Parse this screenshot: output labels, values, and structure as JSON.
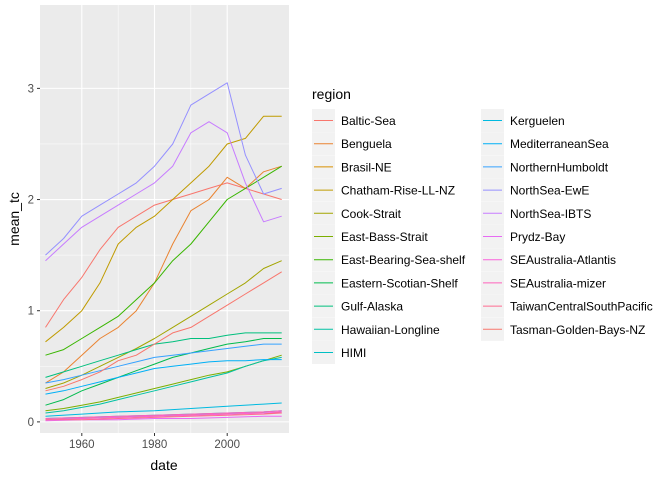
{
  "chart_data": {
    "type": "line",
    "xlabel": "date",
    "ylabel": "mean_tc",
    "xlim": [
      1948.5,
      2017
    ],
    "ylim": [
      -0.1,
      3.75
    ],
    "x_ticks": [
      1960,
      1980,
      2000
    ],
    "y_ticks": [
      0,
      1,
      2,
      3
    ],
    "grid": true,
    "background": "#ebebeb",
    "legend": {
      "title": "region",
      "position": "right",
      "columns": 2
    },
    "series": [
      {
        "name": "Baltic-Sea",
        "color": "#F8766D",
        "x": [
          1950,
          1955,
          1960,
          1965,
          1970,
          1975,
          1980,
          1985,
          1990,
          1995,
          2000,
          2005,
          2010,
          2015
        ],
        "y": [
          0.85,
          1.1,
          1.3,
          1.55,
          1.75,
          1.85,
          1.95,
          2.0,
          2.05,
          2.1,
          2.15,
          2.1,
          2.05,
          2.0
        ]
      },
      {
        "name": "Benguela",
        "color": "#EA8331",
        "x": [
          1950,
          1955,
          1960,
          1965,
          1970,
          1975,
          1980,
          1985,
          1990,
          1995,
          2000,
          2005,
          2010,
          2015
        ],
        "y": [
          0.35,
          0.45,
          0.6,
          0.75,
          0.85,
          1.0,
          1.25,
          1.6,
          1.9,
          2.0,
          2.2,
          2.1,
          2.25,
          2.3
        ]
      },
      {
        "name": "Brasil-NE",
        "color": "#D89000",
        "x": [
          1950,
          1960,
          1970,
          1980,
          1990,
          2000,
          2010,
          2015
        ],
        "y": [
          0.02,
          0.03,
          0.04,
          0.05,
          0.06,
          0.07,
          0.08,
          0.08
        ]
      },
      {
        "name": "Chatham-Rise-LL-NZ",
        "color": "#C09B00",
        "x": [
          1950,
          1955,
          1960,
          1965,
          1970,
          1975,
          1980,
          1985,
          1990,
          1995,
          2000,
          2005,
          2010,
          2015
        ],
        "y": [
          0.72,
          0.85,
          1.0,
          1.25,
          1.6,
          1.75,
          1.85,
          2.0,
          2.15,
          2.3,
          2.5,
          2.55,
          2.75,
          2.75
        ]
      },
      {
        "name": "Cook-Strait",
        "color": "#A3A500",
        "x": [
          1950,
          1955,
          1960,
          1965,
          1970,
          1975,
          1980,
          1985,
          1990,
          1995,
          2000,
          2005,
          2010,
          2015
        ],
        "y": [
          0.3,
          0.35,
          0.42,
          0.5,
          0.58,
          0.66,
          0.75,
          0.85,
          0.95,
          1.05,
          1.15,
          1.25,
          1.38,
          1.45
        ]
      },
      {
        "name": "East-Bass-Strait",
        "color": "#7CAE00",
        "x": [
          1950,
          1955,
          1960,
          1965,
          1970,
          1975,
          1980,
          1985,
          1990,
          1995,
          2000,
          2005,
          2010,
          2015
        ],
        "y": [
          0.1,
          0.12,
          0.15,
          0.18,
          0.22,
          0.26,
          0.3,
          0.34,
          0.38,
          0.42,
          0.45,
          0.5,
          0.55,
          0.6
        ]
      },
      {
        "name": "East-Bearing-Sea-shelf",
        "color": "#39B600",
        "x": [
          1950,
          1955,
          1960,
          1965,
          1970,
          1975,
          1980,
          1985,
          1990,
          1995,
          2000,
          2005,
          2010,
          2015
        ],
        "y": [
          0.6,
          0.65,
          0.75,
          0.85,
          0.95,
          1.1,
          1.25,
          1.45,
          1.6,
          1.8,
          2.0,
          2.1,
          2.2,
          2.3
        ]
      },
      {
        "name": "Eastern-Scotian-Shelf",
        "color": "#00BB4E",
        "x": [
          1950,
          1955,
          1960,
          1965,
          1970,
          1975,
          1980,
          1985,
          1990,
          1995,
          2000,
          2005,
          2010,
          2015
        ],
        "y": [
          0.15,
          0.2,
          0.28,
          0.34,
          0.4,
          0.46,
          0.52,
          0.58,
          0.62,
          0.66,
          0.7,
          0.72,
          0.75,
          0.75
        ]
      },
      {
        "name": "Gulf-Alaska",
        "color": "#00BF7D",
        "x": [
          1950,
          1955,
          1960,
          1965,
          1970,
          1975,
          1980,
          1985,
          1990,
          1995,
          2000,
          2005,
          2010,
          2015
        ],
        "y": [
          0.4,
          0.45,
          0.5,
          0.55,
          0.6,
          0.65,
          0.7,
          0.72,
          0.75,
          0.75,
          0.78,
          0.8,
          0.8,
          0.8
        ]
      },
      {
        "name": "Hawaiian-Longline",
        "color": "#00C1A3",
        "x": [
          1950,
          1955,
          1960,
          1965,
          1970,
          1975,
          1980,
          1985,
          1990,
          1995,
          2000,
          2005,
          2010,
          2015
        ],
        "y": [
          0.08,
          0.1,
          0.13,
          0.16,
          0.2,
          0.24,
          0.28,
          0.32,
          0.36,
          0.4,
          0.44,
          0.5,
          0.55,
          0.58
        ]
      },
      {
        "name": "HIMI",
        "color": "#00BFC4",
        "x": [
          1950,
          1960,
          1970,
          1980,
          1990,
          2000,
          2010,
          2015
        ],
        "y": [
          0.03,
          0.04,
          0.05,
          0.06,
          0.07,
          0.08,
          0.09,
          0.1
        ]
      },
      {
        "name": "Kerguelen",
        "color": "#00BAE0",
        "x": [
          1950,
          1960,
          1970,
          1980,
          1990,
          2000,
          2010,
          2015
        ],
        "y": [
          0.05,
          0.07,
          0.09,
          0.1,
          0.12,
          0.14,
          0.16,
          0.17
        ]
      },
      {
        "name": "MediterraneanSea",
        "color": "#00B0F6",
        "x": [
          1950,
          1955,
          1960,
          1965,
          1970,
          1975,
          1980,
          1985,
          1990,
          1995,
          2000,
          2005,
          2010,
          2015
        ],
        "y": [
          0.25,
          0.28,
          0.32,
          0.36,
          0.4,
          0.44,
          0.48,
          0.5,
          0.52,
          0.54,
          0.55,
          0.55,
          0.56,
          0.56
        ]
      },
      {
        "name": "NorthernHumboldt",
        "color": "#35A2FF",
        "x": [
          1950,
          1955,
          1960,
          1965,
          1970,
          1975,
          1980,
          1985,
          1990,
          1995,
          2000,
          2005,
          2010,
          2015
        ],
        "y": [
          0.35,
          0.38,
          0.42,
          0.46,
          0.5,
          0.54,
          0.58,
          0.6,
          0.62,
          0.64,
          0.66,
          0.68,
          0.7,
          0.7
        ]
      },
      {
        "name": "NorthSea-EwE",
        "color": "#9590FF",
        "x": [
          1950,
          1955,
          1960,
          1965,
          1970,
          1975,
          1980,
          1985,
          1990,
          1995,
          2000,
          2005,
          2010,
          2015
        ],
        "y": [
          1.5,
          1.65,
          1.85,
          1.95,
          2.05,
          2.15,
          2.3,
          2.5,
          2.85,
          2.95,
          3.05,
          2.4,
          2.05,
          2.1
        ]
      },
      {
        "name": "NorthSea-IBTS",
        "color": "#C77CFF",
        "x": [
          1950,
          1955,
          1960,
          1965,
          1970,
          1975,
          1980,
          1985,
          1990,
          1995,
          2000,
          2005,
          2010,
          2015
        ],
        "y": [
          1.45,
          1.6,
          1.75,
          1.85,
          1.95,
          2.05,
          2.15,
          2.3,
          2.6,
          2.7,
          2.6,
          2.15,
          1.8,
          1.85
        ]
      },
      {
        "name": "Prydz-Bay",
        "color": "#E76BF3",
        "x": [
          1950,
          1960,
          1970,
          1980,
          1990,
          2000,
          2010,
          2015
        ],
        "y": [
          0.01,
          0.02,
          0.02,
          0.03,
          0.03,
          0.04,
          0.05,
          0.05
        ]
      },
      {
        "name": "SEAustralia-Atlantis",
        "color": "#FA62DB",
        "x": [
          1950,
          1960,
          1970,
          1980,
          1990,
          2000,
          2010,
          2015
        ],
        "y": [
          0.02,
          0.03,
          0.04,
          0.05,
          0.06,
          0.07,
          0.08,
          0.09
        ]
      },
      {
        "name": "SEAustralia-mizer",
        "color": "#FF62BC",
        "x": [
          1950,
          1960,
          1970,
          1980,
          1990,
          2000,
          2010,
          2015
        ],
        "y": [
          0.03,
          0.04,
          0.05,
          0.06,
          0.07,
          0.08,
          0.09,
          0.1
        ]
      },
      {
        "name": "TaiwanCentralSouthPacific",
        "color": "#FF6C91",
        "x": [
          1950,
          1960,
          1970,
          1980,
          1990,
          2000,
          2010,
          2015
        ],
        "y": [
          0.02,
          0.02,
          0.03,
          0.04,
          0.05,
          0.06,
          0.07,
          0.08
        ]
      },
      {
        "name": "Tasman-Golden-Bays-NZ",
        "color": "#F8766D",
        "x": [
          1950,
          1955,
          1960,
          1965,
          1970,
          1975,
          1980,
          1985,
          1990,
          1995,
          2000,
          2005,
          2010,
          2015
        ],
        "y": [
          0.28,
          0.32,
          0.38,
          0.45,
          0.55,
          0.6,
          0.7,
          0.8,
          0.85,
          0.95,
          1.05,
          1.15,
          1.25,
          1.35
        ]
      }
    ]
  }
}
